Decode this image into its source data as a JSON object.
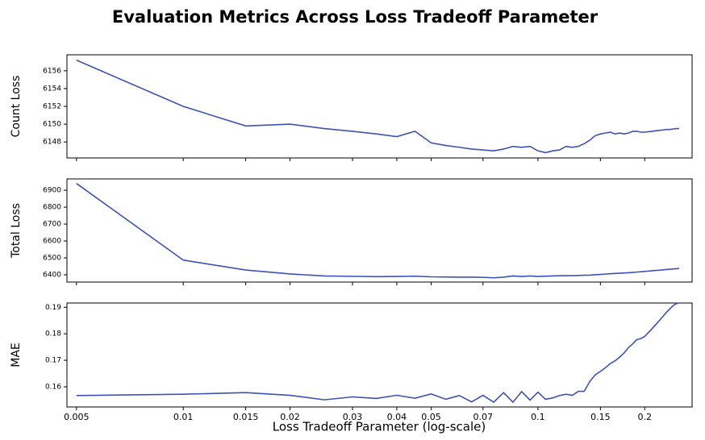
{
  "chart_data": [
    {
      "type": "line",
      "title": "Evaluation Metrics Across Loss Tradeoff Parameter",
      "ylabel": "Count Loss",
      "log_x": true,
      "x": [
        0.005,
        0.01,
        0.015,
        0.02,
        0.025,
        0.03,
        0.035,
        0.04,
        0.045,
        0.05,
        0.055,
        0.06,
        0.065,
        0.07,
        0.075,
        0.08,
        0.085,
        0.09,
        0.095,
        0.1,
        0.105,
        0.11,
        0.115,
        0.12,
        0.125,
        0.13,
        0.135,
        0.14,
        0.145,
        0.15,
        0.155,
        0.16,
        0.165,
        0.17,
        0.175,
        0.18,
        0.185,
        0.19,
        0.195,
        0.2,
        0.205,
        0.21,
        0.215,
        0.22,
        0.225,
        0.23,
        0.235,
        0.24,
        0.245,
        0.25
      ],
      "values": [
        6157.2,
        6152,
        6149.8,
        6150,
        6149.5,
        6149.2,
        6148.9,
        6148.6,
        6149.2,
        6147.9,
        6147.6,
        6147.4,
        6147.2,
        6147.1,
        6147,
        6147.2,
        6147.5,
        6147.4,
        6147.5,
        6147,
        6146.8,
        6147,
        6147.1,
        6147.5,
        6147.4,
        6147.5,
        6147.8,
        6148.2,
        6148.7,
        6148.9,
        6149,
        6149.1,
        6148.9,
        6149,
        6148.9,
        6149,
        6149.2,
        6149.2,
        6149.1,
        6149.1,
        6149.15,
        6149.2,
        6149.25,
        6149.3,
        6149.35,
        6149.4,
        6149.4,
        6149.45,
        6149.5,
        6149.5
      ],
      "color": "#3f51b5",
      "xlim": [
        0.0047,
        0.272
      ],
      "ylim": [
        6146.2,
        6157.8
      ],
      "yticks": [
        6148,
        6150,
        6152,
        6154,
        6156
      ]
    },
    {
      "type": "line",
      "ylabel": "Total Loss",
      "log_x": true,
      "x": [
        0.005,
        0.01,
        0.015,
        0.02,
        0.025,
        0.03,
        0.035,
        0.04,
        0.045,
        0.05,
        0.055,
        0.06,
        0.065,
        0.07,
        0.075,
        0.08,
        0.085,
        0.09,
        0.095,
        0.1,
        0.105,
        0.11,
        0.115,
        0.12,
        0.125,
        0.13,
        0.135,
        0.14,
        0.145,
        0.15,
        0.155,
        0.16,
        0.165,
        0.17,
        0.175,
        0.18,
        0.185,
        0.19,
        0.195,
        0.2,
        0.205,
        0.21,
        0.215,
        0.22,
        0.225,
        0.23,
        0.235,
        0.24,
        0.245,
        0.25
      ],
      "values": [
        6940,
        6487,
        6428,
        6405,
        6393,
        6391,
        6389,
        6390,
        6392,
        6388,
        6387,
        6386,
        6386,
        6385,
        6382,
        6386,
        6393,
        6390,
        6393,
        6390,
        6392,
        6393,
        6394,
        6395,
        6395,
        6396,
        6397,
        6398,
        6400,
        6402,
        6404,
        6406,
        6408,
        6409,
        6411,
        6412,
        6414,
        6416,
        6418,
        6420,
        6422,
        6424,
        6426,
        6427,
        6429,
        6431,
        6433,
        6434,
        6436,
        6437
      ],
      "color": "#3f51b5",
      "xlim": [
        0.0047,
        0.272
      ],
      "ylim": [
        6357,
        6967
      ],
      "yticks": [
        6400,
        6500,
        6600,
        6700,
        6800,
        6900
      ]
    },
    {
      "type": "line",
      "ylabel": "MAE",
      "xlabel": "Loss Tradeoff Parameter (log-scale)",
      "log_x": true,
      "x": [
        0.005,
        0.01,
        0.015,
        0.02,
        0.025,
        0.03,
        0.035,
        0.04,
        0.045,
        0.05,
        0.055,
        0.06,
        0.065,
        0.07,
        0.075,
        0.08,
        0.085,
        0.09,
        0.095,
        0.1,
        0.105,
        0.11,
        0.115,
        0.12,
        0.125,
        0.13,
        0.135,
        0.14,
        0.145,
        0.15,
        0.155,
        0.16,
        0.165,
        0.17,
        0.175,
        0.18,
        0.185,
        0.19,
        0.195,
        0.2,
        0.205,
        0.21,
        0.215,
        0.22,
        0.225,
        0.23,
        0.235,
        0.24,
        0.245,
        0.25
      ],
      "values": [
        0.1567,
        0.1572,
        0.1578,
        0.1568,
        0.1551,
        0.1562,
        0.1556,
        0.1568,
        0.1557,
        0.1573,
        0.1553,
        0.1567,
        0.1543,
        0.1568,
        0.1542,
        0.1578,
        0.1542,
        0.1582,
        0.155,
        0.158,
        0.1553,
        0.1558,
        0.1567,
        0.1572,
        0.1568,
        0.1583,
        0.1583,
        0.162,
        0.1645,
        0.1658,
        0.1672,
        0.1688,
        0.1698,
        0.1712,
        0.1728,
        0.1748,
        0.1762,
        0.1778,
        0.1782,
        0.179,
        0.1805,
        0.182,
        0.1835,
        0.185,
        0.1865,
        0.188,
        0.1893,
        0.1905,
        0.1913,
        0.1916
      ],
      "color": "#3f51b5",
      "xlim": [
        0.0047,
        0.272
      ],
      "ylim": [
        0.1524,
        0.1916
      ],
      "yticks": [
        0.16,
        0.17,
        0.18,
        0.19
      ],
      "xticks": [
        0.005,
        0.01,
        0.015,
        0.02,
        0.03,
        0.04,
        0.05,
        0.07,
        0.1,
        0.15,
        0.2
      ]
    }
  ]
}
